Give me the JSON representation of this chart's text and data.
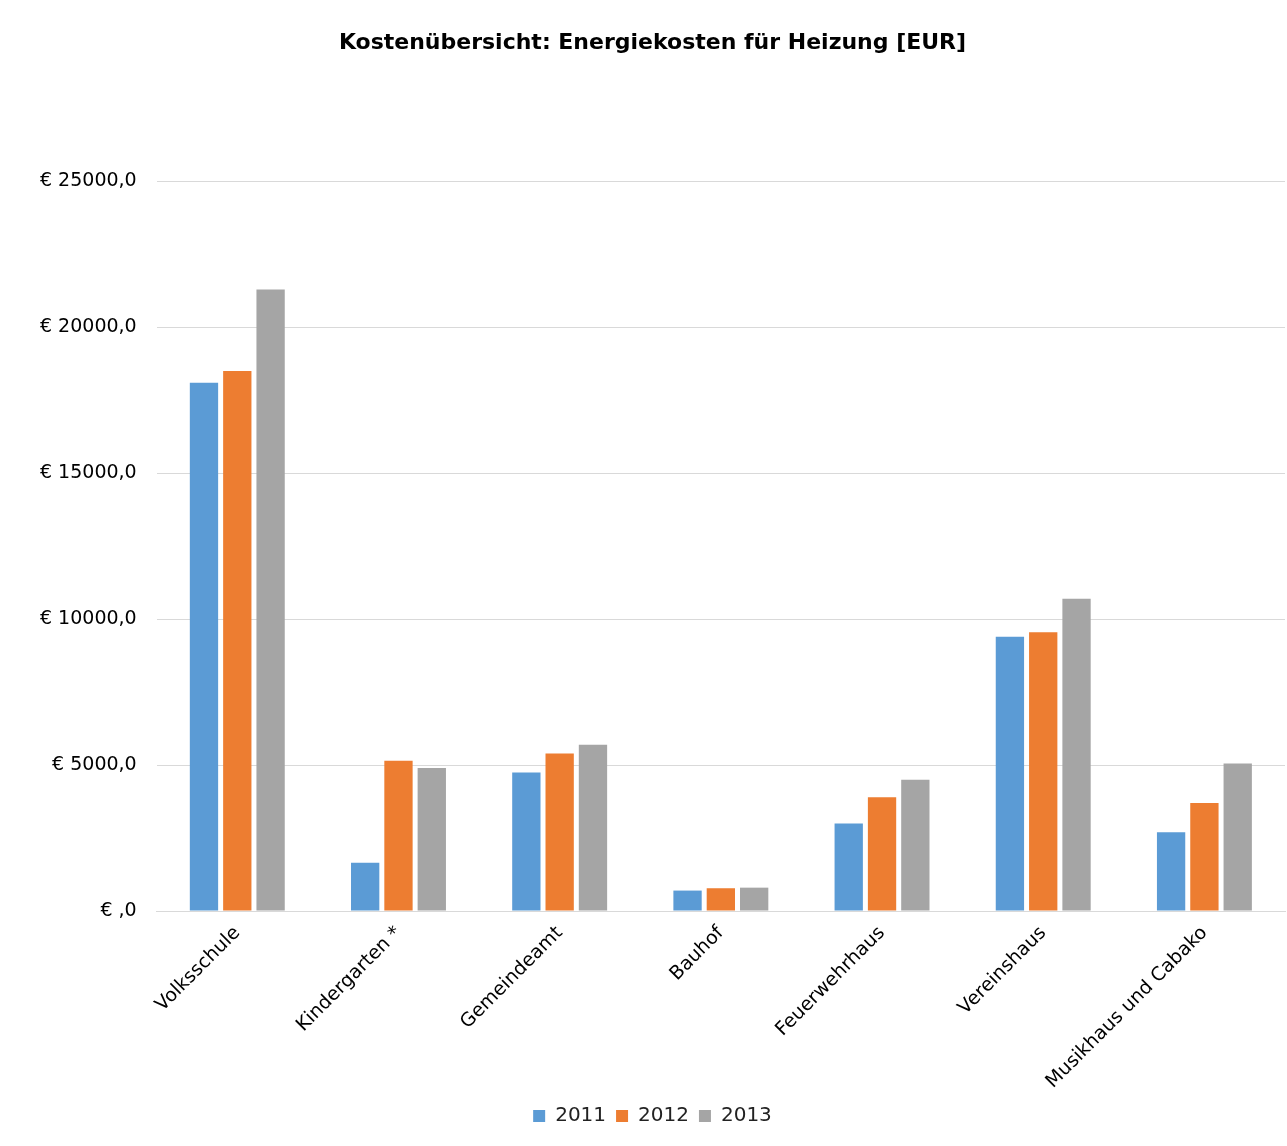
{
  "chart_data": {
    "type": "bar",
    "title": "Kostenübersicht: Energiekosten für Heizung [EUR]",
    "categories": [
      "Volksschule",
      "Kindergarten *",
      "Gemeindeamt",
      "Bauhof",
      "Feuerwehrhaus",
      "Vereinshaus",
      "Musikhaus und Cabako"
    ],
    "series": [
      {
        "name": "2011",
        "color": "#5b9bd5",
        "values": [
          18100,
          1650,
          4750,
          700,
          3000,
          9400,
          2700
        ]
      },
      {
        "name": "2012",
        "color": "#ed7d31",
        "values": [
          18500,
          5150,
          5400,
          780,
          3900,
          9550,
          3700
        ]
      },
      {
        "name": "2013",
        "color": "#a5a5a5",
        "values": [
          21300,
          4900,
          5700,
          800,
          4500,
          10700,
          5050
        ]
      }
    ],
    "ylim": [
      0,
      25000
    ],
    "yticks": [
      {
        "value": 0,
        "label": "€ ,0"
      },
      {
        "value": 5000,
        "label": "€ 5000,0"
      },
      {
        "value": 10000,
        "label": "€ 10000,0"
      },
      {
        "value": 15000,
        "label": "€ 15000,0"
      },
      {
        "value": 20000,
        "label": "€ 20000,0"
      },
      {
        "value": 25000,
        "label": "€ 25000,0"
      }
    ],
    "grid": "y",
    "legend": "bottom"
  }
}
